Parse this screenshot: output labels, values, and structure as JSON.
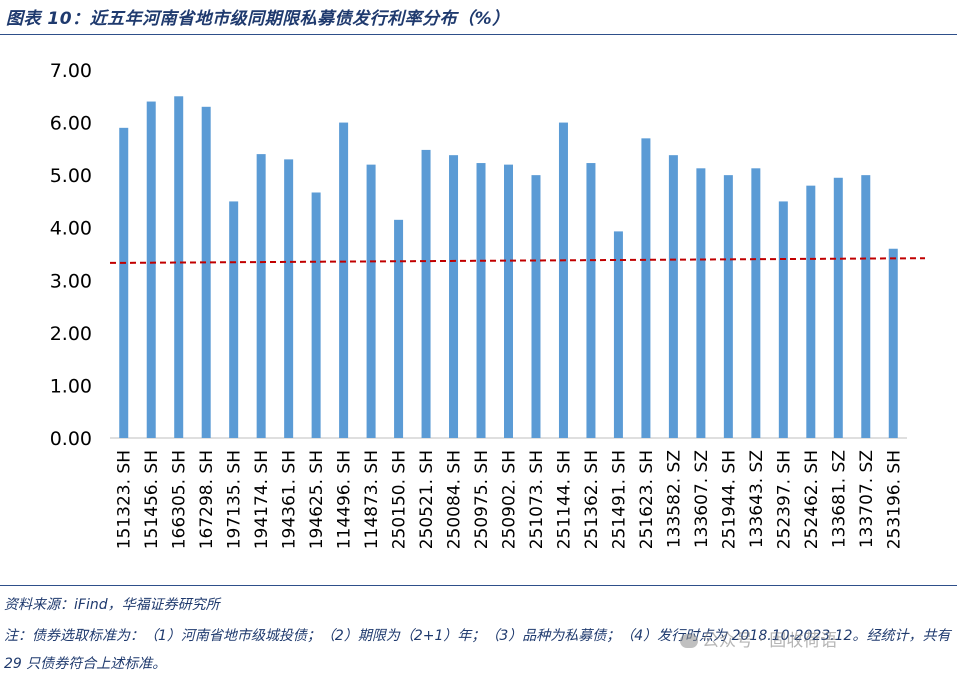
{
  "title": "图表 10：近五年河南省地市级同期限私募债发行利率分布（%）",
  "source": "资料来源：iFind，华福证券研究所",
  "note": "注：债券选取标准为：（1）河南省地市级城投债；（2）期限为（2+1）年；（3）品种为私募债；（4）发行时点为 2018.10-2023.12。经统计，共有 29 只债券符合上述标准。",
  "watermark": "公众号 · 固收荷语",
  "colors": {
    "bar": "#5b9bd5",
    "reference_line": "#c00000",
    "text": "#1f3a6e"
  },
  "chart_data": {
    "type": "bar",
    "categories": [
      "151323. SH",
      "151456. SH",
      "166305. SH",
      "167298. SH",
      "197135. SH",
      "194174. SH",
      "194361. SH",
      "194625. SH",
      "114496. SH",
      "114873. SH",
      "250150. SH",
      "250521. SH",
      "250084. SH",
      "250975. SH",
      "250902. SH",
      "251073. SH",
      "251144. SH",
      "251362. SH",
      "251491. SH",
      "251623. SH",
      "133582. SZ",
      "133607. SZ",
      "251944. SH",
      "133643. SZ",
      "252397. SH",
      "252462. SH",
      "133681. SZ",
      "133707. SZ",
      "253196. SH"
    ],
    "values": [
      5.9,
      6.4,
      6.5,
      6.3,
      4.5,
      5.4,
      5.3,
      4.67,
      6.0,
      5.2,
      4.15,
      5.48,
      5.38,
      5.23,
      5.2,
      5.0,
      6.0,
      5.23,
      3.93,
      5.7,
      5.38,
      5.13,
      5.0,
      5.13,
      4.5,
      4.8,
      4.95,
      5.0,
      3.6
    ],
    "reference_line": {
      "start": 3.33,
      "end": 3.42,
      "style": "dashed"
    },
    "yticks": [
      "0.00",
      "1.00",
      "2.00",
      "3.00",
      "4.00",
      "5.00",
      "6.00",
      "7.00"
    ],
    "ylim": [
      0,
      7
    ],
    "grid": false,
    "legend": "none"
  }
}
